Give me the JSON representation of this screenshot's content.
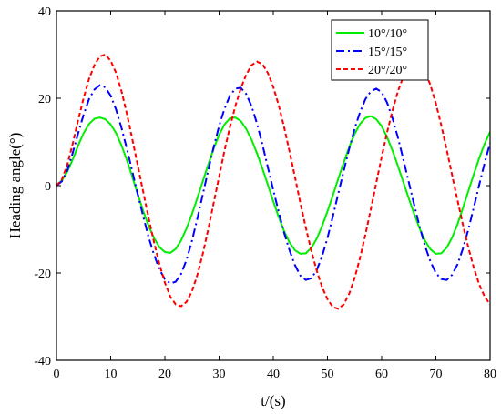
{
  "chart_data": {
    "type": "line",
    "xlabel": "t/(s)",
    "ylabel": "Heading angle(°)",
    "xlim": [
      0,
      80
    ],
    "ylim": [
      -40,
      40
    ],
    "xticks": [
      0,
      10,
      20,
      30,
      40,
      50,
      60,
      70,
      80
    ],
    "yticks": [
      -40,
      -20,
      0,
      20,
      40
    ],
    "xtick_labels": [
      "0",
      "10",
      "20",
      "30",
      "40",
      "50",
      "60",
      "70",
      "80"
    ],
    "ytick_labels": [
      "-40",
      "-20",
      "0",
      "20",
      "40"
    ],
    "grid": false,
    "legend_position": "top-right",
    "series": [
      {
        "name": "10°/10°",
        "color": "#00ee00",
        "dash": "solid",
        "x": [
          0,
          1,
          2,
          3,
          4,
          5,
          6,
          7,
          8,
          9,
          10,
          11,
          12,
          13,
          14,
          15,
          16,
          17,
          18,
          19,
          20,
          21,
          22,
          23,
          24,
          25,
          26,
          27,
          28,
          29,
          30,
          31,
          32,
          33,
          34,
          35,
          36,
          37,
          38,
          39,
          40,
          41,
          42,
          43,
          44,
          45,
          46,
          47,
          48,
          49,
          50,
          51,
          52,
          53,
          54,
          55,
          56,
          57,
          58,
          59,
          60,
          61,
          62,
          63,
          64,
          65,
          66,
          67,
          68,
          69,
          70,
          71,
          72,
          73,
          74,
          75,
          76,
          77,
          78,
          79,
          80
        ],
        "y": [
          0,
          1.2,
          3.2,
          6.0,
          9.2,
          12.0,
          14.1,
          15.3,
          15.6,
          15.2,
          14.0,
          12.0,
          9.2,
          5.8,
          2.0,
          -2.0,
          -5.8,
          -9.2,
          -12.0,
          -14.1,
          -15.2,
          -15.4,
          -14.5,
          -12.5,
          -9.8,
          -6.5,
          -2.8,
          1.0,
          4.8,
          8.5,
          11.6,
          14.0,
          15.4,
          15.6,
          14.8,
          13.0,
          10.5,
          7.4,
          3.9,
          0.2,
          -3.6,
          -7.2,
          -10.4,
          -13.0,
          -14.8,
          -15.6,
          -15.5,
          -14.3,
          -12.2,
          -9.3,
          -5.9,
          -2.2,
          1.6,
          5.3,
          8.8,
          11.8,
          14.1,
          15.5,
          15.9,
          15.2,
          13.6,
          11.1,
          8.0,
          4.5,
          0.8,
          -2.9,
          -6.5,
          -9.8,
          -12.6,
          -14.6,
          -15.6,
          -15.5,
          -14.2,
          -11.9,
          -8.8,
          -5.1,
          -1.2,
          2.6,
          6.3,
          9.6,
          12.3
        ]
      },
      {
        "name": "15°/15°",
        "color": "#0000ff",
        "dash": "dashdot",
        "x": [
          0,
          1,
          2,
          3,
          4,
          5,
          6,
          7,
          8,
          9,
          10,
          11,
          12,
          13,
          14,
          15,
          16,
          17,
          18,
          19,
          20,
          21,
          22,
          23,
          24,
          25,
          26,
          27,
          28,
          29,
          30,
          31,
          32,
          33,
          34,
          35,
          36,
          37,
          38,
          39,
          40,
          41,
          42,
          43,
          44,
          45,
          46,
          47,
          48,
          49,
          50,
          51,
          52,
          53,
          54,
          55,
          56,
          57,
          58,
          59,
          60,
          61,
          62,
          63,
          64,
          65,
          66,
          67,
          68,
          69,
          70,
          71,
          72,
          73,
          74,
          75,
          76,
          77,
          78,
          79,
          80
        ],
        "y": [
          0,
          1.0,
          3.5,
          7.5,
          12.0,
          16.2,
          19.8,
          22.0,
          23.0,
          22.5,
          20.6,
          17.4,
          13.2,
          8.4,
          3.2,
          -2.0,
          -7.0,
          -11.8,
          -15.8,
          -19.2,
          -21.4,
          -22.4,
          -22.0,
          -20.2,
          -17.0,
          -12.6,
          -7.5,
          -2.0,
          3.5,
          8.8,
          13.6,
          17.6,
          20.6,
          22.2,
          22.4,
          21.0,
          18.2,
          14.2,
          9.4,
          4.2,
          -1.0,
          -6.0,
          -10.8,
          -14.8,
          -18.2,
          -20.6,
          -21.6,
          -21.2,
          -19.4,
          -16.2,
          -12.0,
          -7.0,
          -1.8,
          3.4,
          8.4,
          13.0,
          16.8,
          19.8,
          21.6,
          22.2,
          21.4,
          19.0,
          15.4,
          11.0,
          6.0,
          0.8,
          -4.4,
          -9.4,
          -13.8,
          -17.4,
          -20.0,
          -21.4,
          -21.6,
          -20.4,
          -18.0,
          -14.4,
          -10.0,
          -5.0,
          0.2,
          5.2,
          9.8
        ]
      },
      {
        "name": "20°/20°",
        "color": "#ff0000",
        "dash": "dashed",
        "x": [
          0,
          1,
          2,
          3,
          4,
          5,
          6,
          7,
          8,
          9,
          10,
          11,
          12,
          13,
          14,
          15,
          16,
          17,
          18,
          19,
          20,
          21,
          22,
          23,
          24,
          25,
          26,
          27,
          28,
          29,
          30,
          31,
          32,
          33,
          34,
          35,
          36,
          37,
          38,
          39,
          40,
          41,
          42,
          43,
          44,
          45,
          46,
          47,
          48,
          49,
          50,
          51,
          52,
          53,
          54,
          55,
          56,
          57,
          58,
          59,
          60,
          61,
          62,
          63,
          64,
          65,
          66,
          67,
          68,
          69,
          70,
          71,
          72,
          73,
          74,
          75,
          76,
          77,
          78,
          79,
          80
        ],
        "y": [
          0,
          1.4,
          4.8,
          9.6,
          15.0,
          20.0,
          24.4,
          27.6,
          29.6,
          30.0,
          28.6,
          25.8,
          21.6,
          16.4,
          10.6,
          4.6,
          -1.4,
          -7.4,
          -13.0,
          -18.0,
          -22.2,
          -25.4,
          -27.2,
          -27.6,
          -26.6,
          -24.2,
          -20.4,
          -15.6,
          -10.0,
          -4.0,
          2.0,
          8.0,
          13.4,
          18.2,
          22.2,
          25.4,
          27.6,
          28.4,
          27.8,
          25.8,
          22.6,
          18.4,
          13.4,
          7.8,
          2.0,
          -4.0,
          -9.6,
          -14.8,
          -19.4,
          -23.2,
          -26.0,
          -27.8,
          -28.2,
          -27.2,
          -24.8,
          -21.2,
          -16.6,
          -11.2,
          -5.4,
          0.6,
          6.6,
          12.2,
          17.2,
          21.6,
          25.0,
          27.4,
          28.4,
          28.0,
          26.2,
          23.0,
          18.8,
          13.8,
          8.2,
          2.4,
          -3.4,
          -9.0,
          -14.2,
          -18.8,
          -22.6,
          -25.4,
          -27.2
        ]
      }
    ]
  }
}
